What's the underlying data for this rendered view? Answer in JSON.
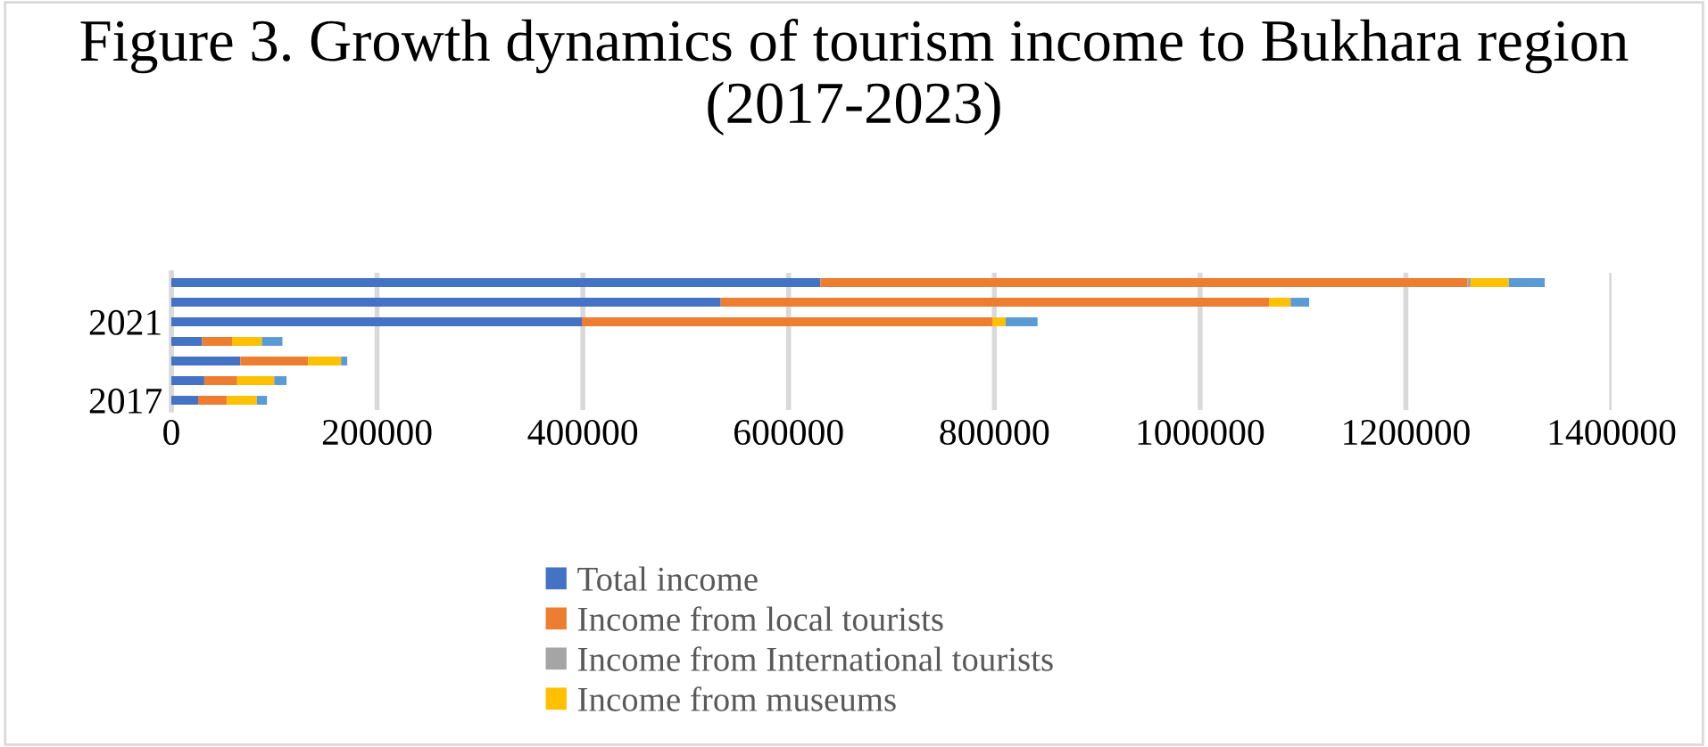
{
  "chart_data": {
    "type": "bar",
    "orientation": "horizontal",
    "stacked": true,
    "title": "Figure 3. Growth dynamics of tourism income to Bukhara region (2017-2023)",
    "categories": [
      null,
      null,
      "2021",
      null,
      null,
      null,
      "2017"
    ],
    "series": [
      {
        "name": "Total income",
        "color": "#4472c4",
        "values": [
          631000,
          534000,
          399000,
          30000,
          67000,
          32000,
          26000
        ]
      },
      {
        "name": "Income from local tourists",
        "color": "#ed7d31",
        "values": [
          629000,
          533000,
          399000,
          29000,
          66000,
          32000,
          28000
        ]
      },
      {
        "name": "Income from International tourists",
        "color": "#a5a5a5",
        "values": [
          3000,
          null,
          null,
          null,
          null,
          null,
          null
        ]
      },
      {
        "name": "Income from museums",
        "color": "#ffc000",
        "values": [
          37000,
          21000,
          13000,
          29000,
          32000,
          36000,
          29000
        ]
      },
      {
        "color": "#5b9bd5",
        "values": [
          35000,
          18000,
          31000,
          20000,
          6000,
          12000,
          10000
        ]
      }
    ],
    "xlim": [
      0,
      1400000
    ],
    "xticks": [
      0,
      200000,
      400000,
      600000,
      800000,
      1000000,
      1200000,
      1400000
    ],
    "grid": "x",
    "legend": "bottom"
  }
}
